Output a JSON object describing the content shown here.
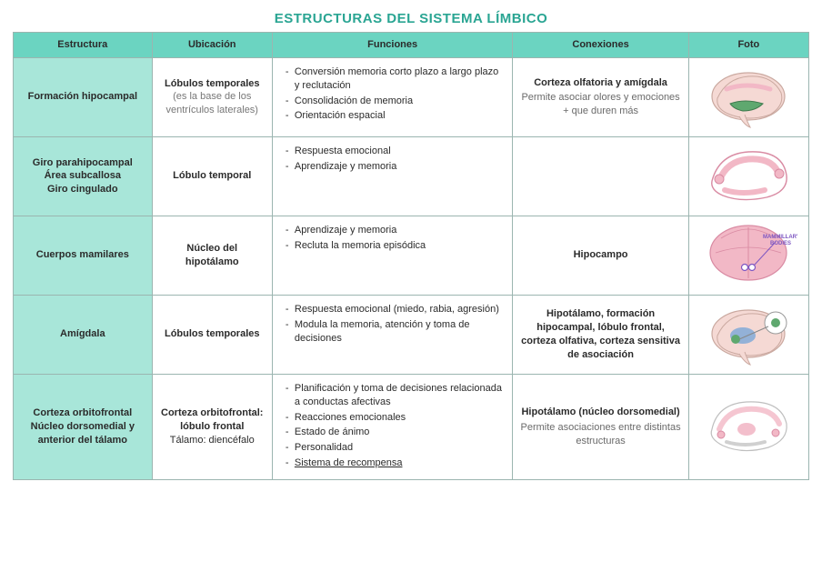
{
  "title": "ESTRUCTURAS DEL SISTEMA LÍMBICO",
  "titleColor": "#2aa593",
  "headerBg": "#6bd4c1",
  "rowHeaderBg": "#a8e6d9",
  "borderColor": "#9bb5b0",
  "columns": [
    "Estructura",
    "Ubicación",
    "Funciones",
    "Conexiones",
    "Foto"
  ],
  "rows": [
    {
      "estructura": [
        "Formación hipocampal"
      ],
      "ubicacion": {
        "main": "Lóbulos temporales",
        "sub": "(es la base de los ventrículos laterales)"
      },
      "funciones": [
        "Conversión memoria corto plazo a largo plazo y reclutación",
        "Consolidación de memoria",
        "Orientación espacial"
      ],
      "conexiones": {
        "main": "Corteza olfatoria y amígdala",
        "sub": "Permite asociar olores y emociones + que duren más"
      },
      "foto": "hippocampus"
    },
    {
      "estructura": [
        "Giro parahipocampal",
        "Área subcallosa",
        "Giro cingulado"
      ],
      "ubicacion": {
        "main": "Lóbulo temporal",
        "sub": ""
      },
      "funciones": [
        "Respuesta emocional",
        "Aprendizaje y memoria"
      ],
      "conexiones": {
        "main": "",
        "sub": ""
      },
      "foto": "cingulate"
    },
    {
      "estructura": [
        "Cuerpos mamilares"
      ],
      "ubicacion": {
        "main": "Núcleo del hipotálamo",
        "sub": ""
      },
      "funciones": [
        "Aprendizaje y memoria",
        "Recluta la memoria episódica"
      ],
      "conexiones": {
        "main": "Hipocampo",
        "sub": ""
      },
      "foto": "mammillary"
    },
    {
      "estructura": [
        "Amígdala"
      ],
      "ubicacion": {
        "main": "Lóbulos temporales",
        "sub": ""
      },
      "funciones": [
        "Respuesta emocional (miedo, rabia, agresión)",
        "Modula la memoria, atención y toma de decisiones"
      ],
      "conexiones": {
        "main": "Hipotálamo, formación hipocampal, lóbulo frontal, corteza olfativa, corteza sensitiva de asociación",
        "sub": ""
      },
      "foto": "amygdala"
    },
    {
      "estructura": [
        "Corteza orbitofrontal",
        "Núcleo dorsomedial y anterior del tálamo"
      ],
      "ubicacion": {
        "main": "Corteza orbitofrontal: lóbulo frontal",
        "sub": "Tálamo: diencéfalo",
        "subStyle": "plain"
      },
      "funciones": [
        "Planificación y toma de decisiones relacionada a conductas afectivas",
        "Reacciones emocionales",
        "Estado de ánimo",
        "Personalidad",
        {
          "text": "Sistema de recompensa",
          "underline": true
        }
      ],
      "conexiones": {
        "main": "Hipotálamo (núcleo dorsomedial)",
        "sub": "Permite asociaciones entre distintas estructuras"
      },
      "foto": "orbitofrontal"
    }
  ],
  "brainColors": {
    "outline": "#caa9a0",
    "fill": "#f5d9d4",
    "pink": "#f2b8c6",
    "pinkDark": "#d98ba3",
    "green": "#5fa86f",
    "blue": "#6aa0d8",
    "purple": "#a58cc7",
    "label": "#7e57c2"
  }
}
